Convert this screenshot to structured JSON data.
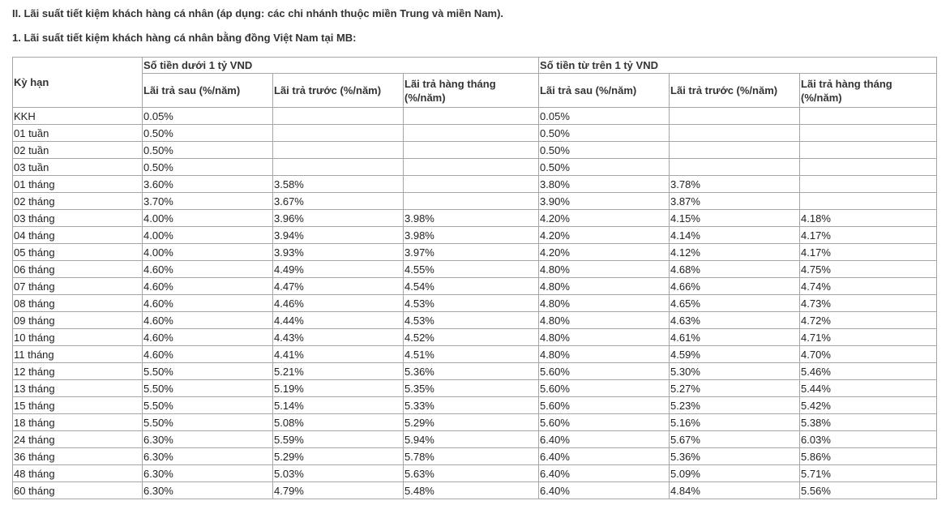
{
  "headings": [
    "II. Lãi suất tiết kiệm khách hàng cá nhân (áp dụng: các chi nhánh thuộc miền Trung và miền Nam).",
    "1. Lãi suất tiết kiệm khách hàng cá nhân bằng đồng Việt Nam tại MB:"
  ],
  "table": {
    "header": {
      "term": "Kỳ hạn",
      "groups": [
        "Số tiền dưới 1 tỷ VND",
        "Số tiền từ trên 1 tỷ VND"
      ],
      "columns": [
        "Lãi trả sau (%/năm)",
        "Lãi trả trước (%/năm)",
        "Lãi trả hàng tháng (%/năm)",
        "Lãi trả sau (%/năm)",
        "Lãi trả trước (%/năm)",
        "Lãi trả hàng tháng (%/năm)"
      ]
    },
    "rows": [
      [
        "KKH",
        "0.05%",
        null,
        null,
        "0.05%",
        null,
        null
      ],
      [
        "01 tuần",
        "0.50%",
        null,
        null,
        "0.50%",
        null,
        null
      ],
      [
        "02 tuần",
        "0.50%",
        null,
        null,
        "0.50%",
        null,
        null
      ],
      [
        "03 tuần",
        "0.50%",
        null,
        null,
        "0.50%",
        null,
        null
      ],
      [
        "01 tháng",
        "3.60%",
        "3.58%",
        null,
        "3.80%",
        "3.78%",
        null
      ],
      [
        "02 tháng",
        "3.70%",
        "3.67%",
        null,
        "3.90%",
        "3.87%",
        null
      ],
      [
        "03 tháng",
        "4.00%",
        "3.96%",
        "3.98%",
        "4.20%",
        "4.15%",
        "4.18%"
      ],
      [
        "04 tháng",
        "4.00%",
        "3.94%",
        "3.98%",
        "4.20%",
        "4.14%",
        "4.17%"
      ],
      [
        "05 tháng",
        "4.00%",
        "3.93%",
        "3.97%",
        "4.20%",
        "4.12%",
        "4.17%"
      ],
      [
        "06 tháng",
        "4.60%",
        "4.49%",
        "4.55%",
        "4.80%",
        "4.68%",
        "4.75%"
      ],
      [
        "07 tháng",
        "4.60%",
        "4.47%",
        "4.54%",
        "4.80%",
        "4.66%",
        "4.74%"
      ],
      [
        "08 tháng",
        "4.60%",
        "4.46%",
        "4.53%",
        "4.80%",
        "4.65%",
        "4.73%"
      ],
      [
        "09 tháng",
        "4.60%",
        "4.44%",
        "4.53%",
        "4.80%",
        "4.63%",
        "4.72%"
      ],
      [
        "10 tháng",
        "4.60%",
        "4.43%",
        "4.52%",
        "4.80%",
        "4.61%",
        "4.71%"
      ],
      [
        "11 tháng",
        "4.60%",
        "4.41%",
        "4.51%",
        "4.80%",
        "4.59%",
        "4.70%"
      ],
      [
        "12 tháng",
        "5.50%",
        "5.21%",
        "5.36%",
        "5.60%",
        "5.30%",
        "5.46%"
      ],
      [
        "13 tháng",
        "5.50%",
        "5.19%",
        "5.35%",
        "5.60%",
        "5.27%",
        "5.44%"
      ],
      [
        "15 tháng",
        "5.50%",
        "5.14%",
        "5.33%",
        "5.60%",
        "5.23%",
        "5.42%"
      ],
      [
        "18 tháng",
        "5.50%",
        "5.08%",
        "5.29%",
        "5.60%",
        "5.16%",
        "5.38%"
      ],
      [
        "24 tháng",
        "6.30%",
        "5.59%",
        "5.94%",
        "6.40%",
        "5.67%",
        "6.03%"
      ],
      [
        "36 tháng",
        "6.30%",
        "5.29%",
        "5.78%",
        "6.40%",
        "5.36%",
        "5.86%"
      ],
      [
        "48 tháng",
        "6.30%",
        "5.03%",
        "5.63%",
        "6.40%",
        "5.09%",
        "5.71%"
      ],
      [
        "60 tháng",
        "6.30%",
        "4.79%",
        "5.48%",
        "6.40%",
        "4.84%",
        "5.56%"
      ]
    ]
  }
}
